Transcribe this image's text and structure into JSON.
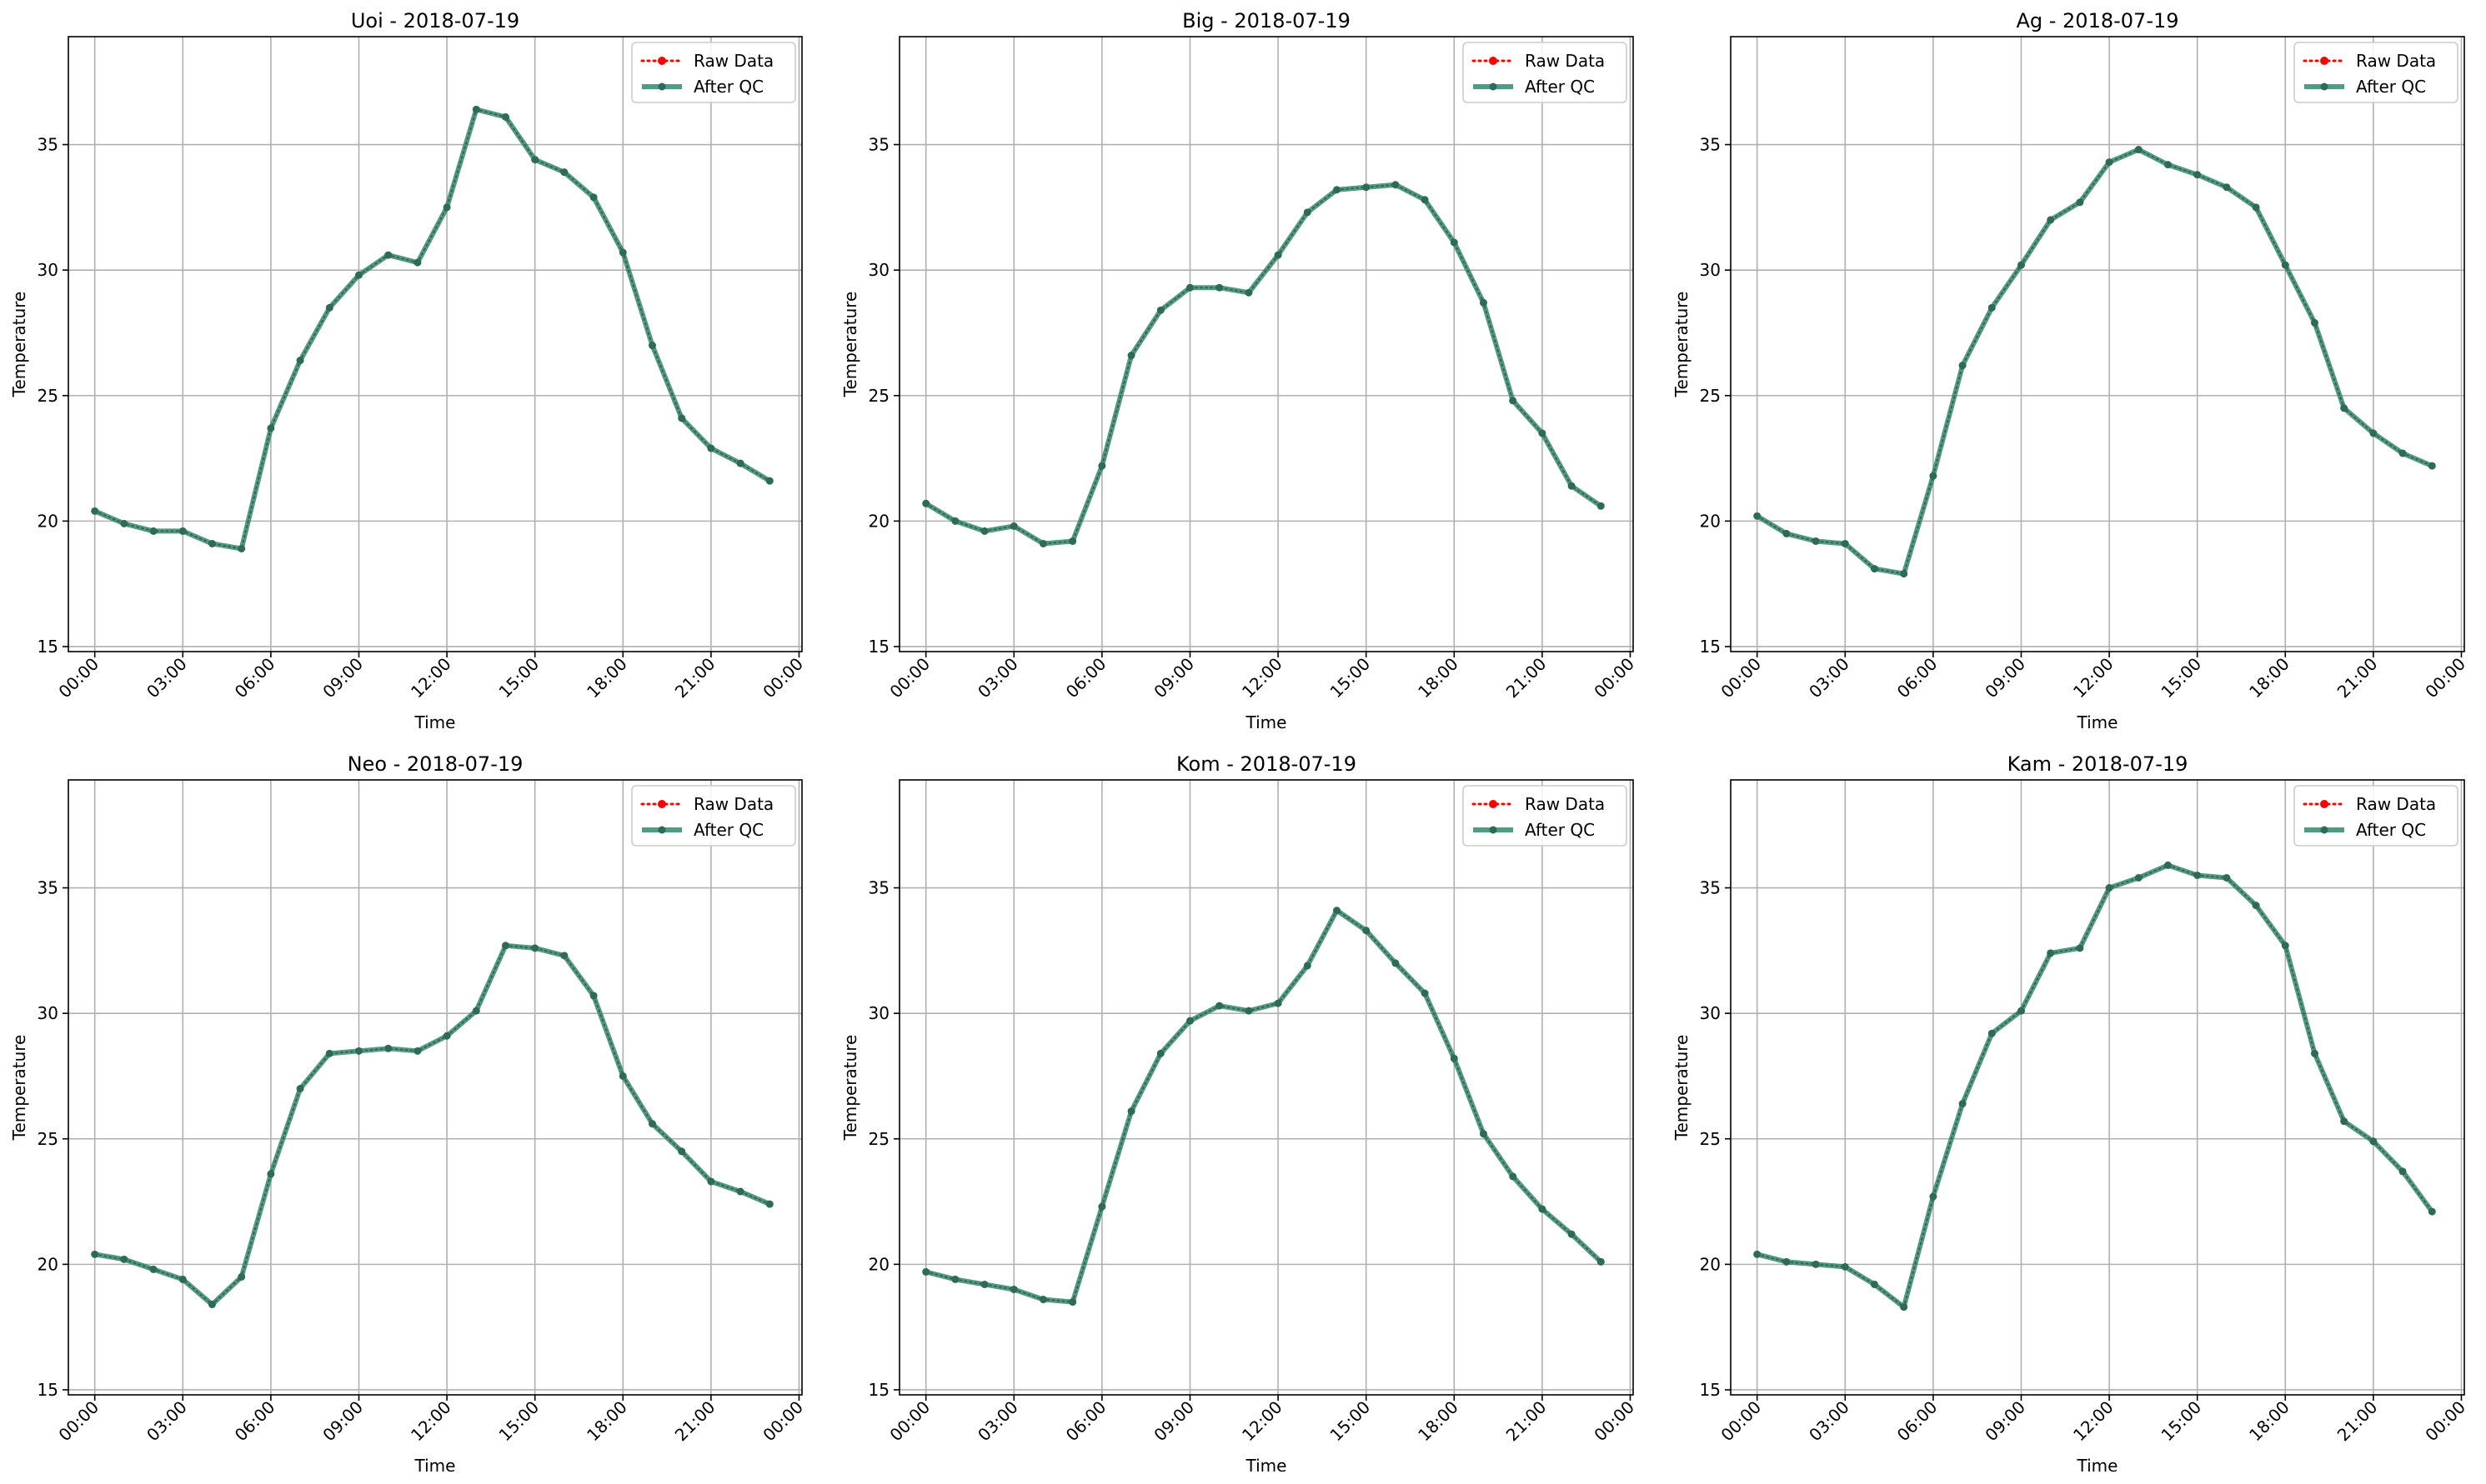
{
  "figure": {
    "series_names": [
      "Raw Data",
      "After QC"
    ],
    "colors": {
      "raw": "#ff0000",
      "qc": "#2e8b6e",
      "grid": "#b0b0b0"
    }
  },
  "chart_data": [
    {
      "type": "line",
      "title": "Uoi - 2018-07-19",
      "xlabel": "Time",
      "ylabel": "Temperature",
      "xlim_hours": [
        -0.9,
        24.1
      ],
      "ylim": [
        14.8,
        39.3
      ],
      "xticks": [
        "00:00",
        "03:00",
        "06:00",
        "09:00",
        "12:00",
        "15:00",
        "18:00",
        "21:00",
        "00:00"
      ],
      "yticks": [
        15,
        20,
        25,
        30,
        35
      ],
      "grid": true,
      "legend": "top-right",
      "x_hours": [
        0,
        1,
        2,
        3,
        4,
        5,
        6,
        7,
        8,
        9,
        10,
        11,
        12,
        13,
        14,
        15,
        16,
        17,
        18,
        19,
        20,
        21,
        22,
        23
      ],
      "series": [
        {
          "name": "Raw Data",
          "values": [
            20.4,
            19.9,
            19.6,
            19.6,
            19.1,
            18.9,
            23.7,
            26.4,
            28.5,
            29.8,
            30.6,
            30.3,
            32.5,
            36.4,
            36.1,
            34.4,
            33.9,
            32.9,
            30.7,
            27.0,
            24.1,
            22.9,
            22.3,
            21.6
          ]
        },
        {
          "name": "After QC",
          "values": [
            20.4,
            19.9,
            19.6,
            19.6,
            19.1,
            18.9,
            23.7,
            26.4,
            28.5,
            29.8,
            30.6,
            30.3,
            32.5,
            36.4,
            36.1,
            34.4,
            33.9,
            32.9,
            30.7,
            27.0,
            24.1,
            22.9,
            22.3,
            21.6
          ]
        }
      ]
    },
    {
      "type": "line",
      "title": "Big - 2018-07-19",
      "xlabel": "Time",
      "ylabel": "Temperature",
      "xlim_hours": [
        -0.9,
        24.1
      ],
      "ylim": [
        14.8,
        39.3
      ],
      "xticks": [
        "00:00",
        "03:00",
        "06:00",
        "09:00",
        "12:00",
        "15:00",
        "18:00",
        "21:00",
        "00:00"
      ],
      "yticks": [
        15,
        20,
        25,
        30,
        35
      ],
      "grid": true,
      "legend": "top-right",
      "x_hours": [
        0,
        1,
        2,
        3,
        4,
        5,
        6,
        7,
        8,
        9,
        10,
        11,
        12,
        13,
        14,
        15,
        16,
        17,
        18,
        19,
        20,
        21,
        22,
        23
      ],
      "series": [
        {
          "name": "Raw Data",
          "values": [
            20.7,
            20.0,
            19.6,
            19.8,
            19.1,
            19.2,
            22.2,
            26.6,
            28.4,
            29.3,
            29.3,
            29.1,
            30.6,
            32.3,
            33.2,
            33.3,
            33.4,
            32.8,
            31.1,
            28.7,
            24.8,
            23.5,
            21.4,
            20.6
          ]
        },
        {
          "name": "After QC",
          "values": [
            20.7,
            20.0,
            19.6,
            19.8,
            19.1,
            19.2,
            22.2,
            26.6,
            28.4,
            29.3,
            29.3,
            29.1,
            30.6,
            32.3,
            33.2,
            33.3,
            33.4,
            32.8,
            31.1,
            28.7,
            24.8,
            23.5,
            21.4,
            20.6
          ]
        }
      ]
    },
    {
      "type": "line",
      "title": "Ag - 2018-07-19",
      "xlabel": "Time",
      "ylabel": "Temperature",
      "xlim_hours": [
        -0.9,
        24.1
      ],
      "ylim": [
        14.8,
        39.3
      ],
      "xticks": [
        "00:00",
        "03:00",
        "06:00",
        "09:00",
        "12:00",
        "15:00",
        "18:00",
        "21:00",
        "00:00"
      ],
      "yticks": [
        15,
        20,
        25,
        30,
        35
      ],
      "grid": true,
      "legend": "top-right",
      "x_hours": [
        0,
        1,
        2,
        3,
        4,
        5,
        6,
        7,
        8,
        9,
        10,
        11,
        12,
        13,
        14,
        15,
        16,
        17,
        18,
        19,
        20,
        21,
        22,
        23
      ],
      "series": [
        {
          "name": "Raw Data",
          "values": [
            20.2,
            19.5,
            19.2,
            19.1,
            18.1,
            17.9,
            21.8,
            26.2,
            28.5,
            30.2,
            32.0,
            32.7,
            34.3,
            34.8,
            34.2,
            33.8,
            33.3,
            32.5,
            30.2,
            27.9,
            24.5,
            23.5,
            22.7,
            22.2
          ]
        },
        {
          "name": "After QC",
          "values": [
            20.2,
            19.5,
            19.2,
            19.1,
            18.1,
            17.9,
            21.8,
            26.2,
            28.5,
            30.2,
            32.0,
            32.7,
            34.3,
            34.8,
            34.2,
            33.8,
            33.3,
            32.5,
            30.2,
            27.9,
            24.5,
            23.5,
            22.7,
            22.2
          ]
        }
      ]
    },
    {
      "type": "line",
      "title": "Neo - 2018-07-19",
      "xlabel": "Time",
      "ylabel": "Temperature",
      "xlim_hours": [
        -0.9,
        24.1
      ],
      "ylim": [
        14.8,
        39.3
      ],
      "xticks": [
        "00:00",
        "03:00",
        "06:00",
        "09:00",
        "12:00",
        "15:00",
        "18:00",
        "21:00",
        "00:00"
      ],
      "yticks": [
        15,
        20,
        25,
        30,
        35
      ],
      "grid": true,
      "legend": "top-right",
      "x_hours": [
        0,
        1,
        2,
        3,
        4,
        5,
        6,
        7,
        8,
        9,
        10,
        11,
        12,
        13,
        14,
        15,
        16,
        17,
        18,
        19,
        20,
        21,
        22,
        23
      ],
      "series": [
        {
          "name": "Raw Data",
          "values": [
            20.4,
            20.2,
            19.8,
            19.4,
            18.4,
            19.5,
            23.6,
            27.0,
            28.4,
            28.5,
            28.6,
            28.5,
            29.1,
            30.1,
            32.7,
            32.6,
            32.3,
            30.7,
            27.5,
            25.6,
            24.5,
            23.3,
            22.9,
            22.4
          ]
        },
        {
          "name": "After QC",
          "values": [
            20.4,
            20.2,
            19.8,
            19.4,
            18.4,
            19.5,
            23.6,
            27.0,
            28.4,
            28.5,
            28.6,
            28.5,
            29.1,
            30.1,
            32.7,
            32.6,
            32.3,
            30.7,
            27.5,
            25.6,
            24.5,
            23.3,
            22.9,
            22.4
          ]
        }
      ]
    },
    {
      "type": "line",
      "title": "Kom - 2018-07-19",
      "xlabel": "Time",
      "ylabel": "Temperature",
      "xlim_hours": [
        -0.9,
        24.1
      ],
      "ylim": [
        14.8,
        39.3
      ],
      "xticks": [
        "00:00",
        "03:00",
        "06:00",
        "09:00",
        "12:00",
        "15:00",
        "18:00",
        "21:00",
        "00:00"
      ],
      "yticks": [
        15,
        20,
        25,
        30,
        35
      ],
      "grid": true,
      "legend": "top-right",
      "x_hours": [
        0,
        1,
        2,
        3,
        4,
        5,
        6,
        7,
        8,
        9,
        10,
        11,
        12,
        13,
        14,
        15,
        16,
        17,
        18,
        19,
        20,
        21,
        22,
        23
      ],
      "series": [
        {
          "name": "Raw Data",
          "values": [
            19.7,
            19.4,
            19.2,
            19.0,
            18.6,
            18.5,
            22.3,
            26.1,
            28.4,
            29.7,
            30.3,
            30.1,
            30.4,
            31.9,
            34.1,
            33.3,
            32.0,
            30.8,
            28.2,
            25.2,
            23.5,
            22.2,
            21.2,
            20.1
          ]
        },
        {
          "name": "After QC",
          "values": [
            19.7,
            19.4,
            19.2,
            19.0,
            18.6,
            18.5,
            22.3,
            26.1,
            28.4,
            29.7,
            30.3,
            30.1,
            30.4,
            31.9,
            34.1,
            33.3,
            32.0,
            30.8,
            28.2,
            25.2,
            23.5,
            22.2,
            21.2,
            20.1
          ]
        }
      ]
    },
    {
      "type": "line",
      "title": "Kam - 2018-07-19",
      "xlabel": "Time",
      "ylabel": "Temperature",
      "xlim_hours": [
        -0.9,
        24.1
      ],
      "ylim": [
        14.8,
        39.3
      ],
      "xticks": [
        "00:00",
        "03:00",
        "06:00",
        "09:00",
        "12:00",
        "15:00",
        "18:00",
        "21:00",
        "00:00"
      ],
      "yticks": [
        15,
        20,
        25,
        30,
        35
      ],
      "grid": true,
      "legend": "top-right",
      "x_hours": [
        0,
        1,
        2,
        3,
        4,
        5,
        6,
        7,
        8,
        9,
        10,
        11,
        12,
        13,
        14,
        15,
        16,
        17,
        18,
        19,
        20,
        21,
        22,
        23
      ],
      "series": [
        {
          "name": "Raw Data",
          "values": [
            20.4,
            20.1,
            20.0,
            19.9,
            19.2,
            18.3,
            22.7,
            26.4,
            29.2,
            30.1,
            32.4,
            32.6,
            35.0,
            35.4,
            35.9,
            35.5,
            35.4,
            34.3,
            32.7,
            28.4,
            25.7,
            24.9,
            23.7,
            22.1
          ]
        },
        {
          "name": "After QC",
          "values": [
            20.4,
            20.1,
            20.0,
            19.9,
            19.2,
            18.3,
            22.7,
            26.4,
            29.2,
            30.1,
            32.4,
            32.6,
            35.0,
            35.4,
            35.9,
            35.5,
            35.4,
            34.3,
            32.7,
            28.4,
            25.7,
            24.9,
            23.7,
            22.1
          ]
        }
      ]
    }
  ]
}
